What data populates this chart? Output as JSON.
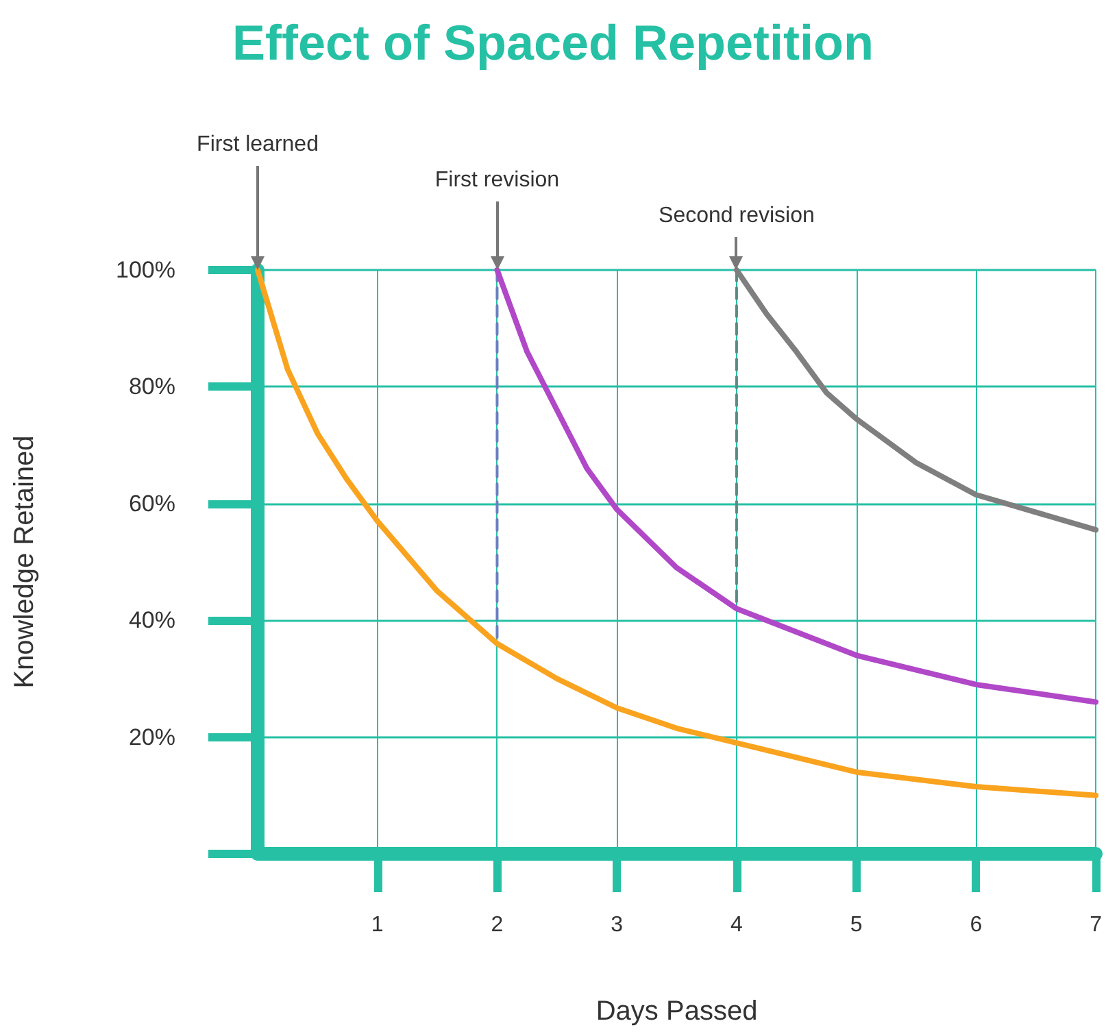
{
  "chart_data": {
    "type": "line",
    "title": "Effect of Spaced Repetition",
    "xlabel": "Days Passed",
    "ylabel": "Knowledge Retained",
    "xlim": [
      0,
      7
    ],
    "xticks": [
      1,
      2,
      3,
      4,
      5,
      6,
      7
    ],
    "ylim": [
      0,
      100
    ],
    "yticks": [
      {
        "value": 0,
        "label": null
      },
      {
        "value": 20,
        "label": "20%"
      },
      {
        "value": 40,
        "label": "40%"
      },
      {
        "value": 60,
        "label": "60%"
      },
      {
        "value": 80,
        "label": "80%"
      },
      {
        "value": 100,
        "label": "100%"
      }
    ],
    "grid": true,
    "marker": "none",
    "series": [
      {
        "color": "#f9a31f",
        "line_style": "solid",
        "x": [
          0,
          0.25,
          0.5,
          0.75,
          1,
          1.5,
          2,
          2.5,
          3,
          3.5,
          4,
          4.5,
          5,
          6,
          7
        ],
        "values": [
          100,
          83,
          72,
          64,
          57,
          45,
          36,
          30,
          25,
          21.5,
          19,
          16.5,
          14,
          11.5,
          10
        ]
      },
      {
        "color": "#b048c8",
        "line_style": "solid",
        "x": [
          2,
          2.25,
          2.5,
          2.75,
          3,
          3.5,
          4,
          4.5,
          5,
          6,
          7
        ],
        "values": [
          100,
          86,
          76,
          66,
          59,
          49,
          42,
          38,
          34,
          29,
          26
        ]
      },
      {
        "color": "#7f7f7f",
        "line_style": "solid",
        "x": [
          4,
          4.25,
          4.5,
          4.75,
          5,
          5.5,
          6,
          7
        ],
        "values": [
          100,
          92.5,
          86,
          79,
          74.5,
          67,
          61.5,
          55.5
        ]
      },
      {
        "color": "#6a7fbf",
        "line_style": "dashed",
        "x": [
          2,
          2
        ],
        "values": [
          100,
          36.5
        ]
      },
      {
        "color": "#5a8a80",
        "line_style": "dashed",
        "x": [
          4,
          4
        ],
        "values": [
          100,
          43
        ]
      }
    ],
    "annotations": [
      {
        "text": "First learned",
        "x": 0,
        "y": 100
      },
      {
        "text": "First revision",
        "x": 2,
        "y": 100
      },
      {
        "text": "Second revision",
        "x": 4,
        "y": 100
      }
    ]
  }
}
